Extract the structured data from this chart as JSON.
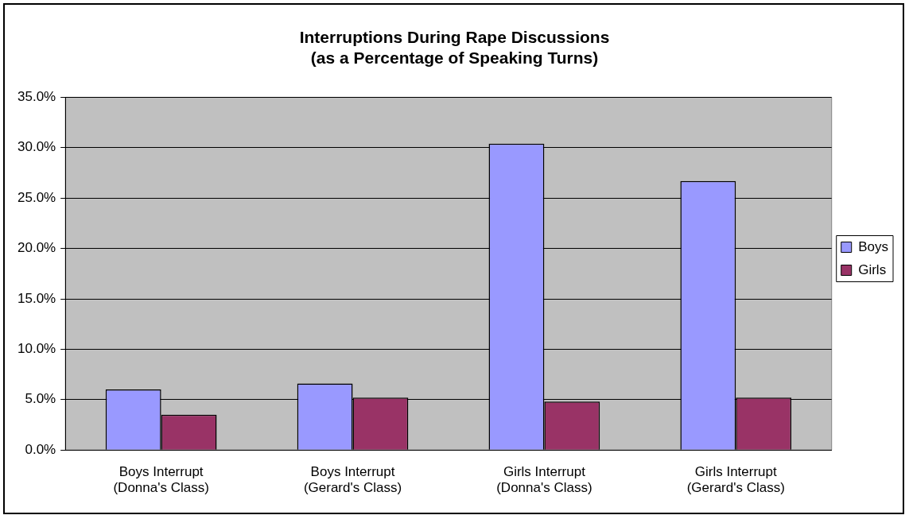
{
  "chart_data": {
    "type": "bar",
    "title": "Interruptions During Rape Discussions\n(as a Percentage of Speaking Turns)",
    "categories": [
      "Boys Interrupt\n(Donna's Class)",
      "Boys Interrupt\n(Gerard's Class)",
      "Girls Interrupt\n(Donna's Class)",
      "Girls Interrupt\n(Gerard's Class)"
    ],
    "series": [
      {
        "name": "Boys",
        "color": "#9999ff",
        "values": [
          6.0,
          6.6,
          30.4,
          26.7
        ]
      },
      {
        "name": "Girls",
        "color": "#993366",
        "values": [
          3.5,
          5.2,
          4.8,
          5.2
        ]
      }
    ],
    "ylim": [
      0,
      35
    ],
    "yticks": [
      {
        "value": 0,
        "label": "0.0%"
      },
      {
        "value": 5,
        "label": "5.0%"
      },
      {
        "value": 10,
        "label": "10.0%"
      },
      {
        "value": 15,
        "label": "15.0%"
      },
      {
        "value": 20,
        "label": "20.0%"
      },
      {
        "value": 25,
        "label": "25.0%"
      },
      {
        "value": 30,
        "label": "30.0%"
      },
      {
        "value": 35,
        "label": "35.0%"
      }
    ],
    "grid": "y",
    "legend": "right"
  }
}
